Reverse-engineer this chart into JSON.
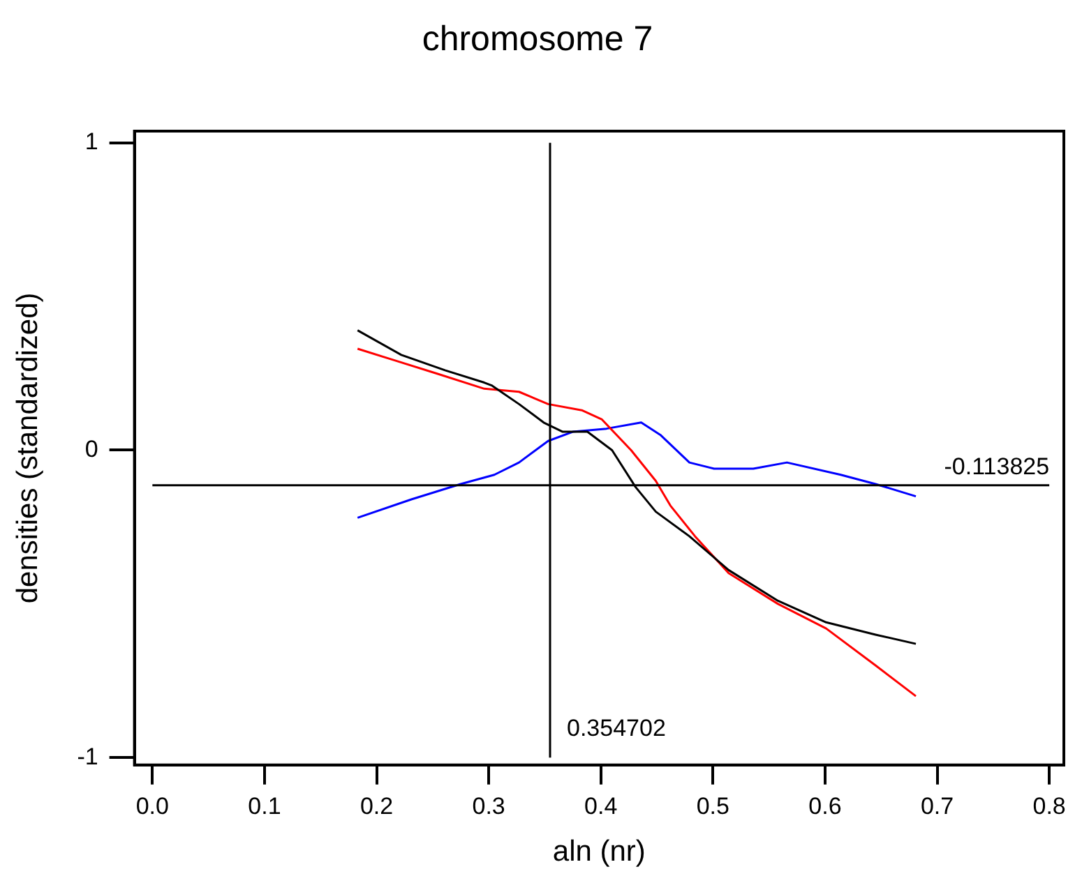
{
  "chart_data": {
    "type": "line",
    "title": "chromosome 7",
    "xlabel": "aln (nr)",
    "ylabel": "densities (standardized)",
    "xlim": [
      -0.016,
      0.813
    ],
    "ylim": [
      -1.024,
      1.038
    ],
    "xticks": [
      {
        "value": 0,
        "label": "0.0"
      },
      {
        "value": 0.1,
        "label": "0.1"
      },
      {
        "value": 0.2,
        "label": "0.2"
      },
      {
        "value": 0.3,
        "label": "0.3"
      },
      {
        "value": 0.4,
        "label": "0.4"
      },
      {
        "value": 0.5,
        "label": "0.5"
      },
      {
        "value": 0.6,
        "label": "0.6"
      },
      {
        "value": 0.7,
        "label": "0.7"
      },
      {
        "value": 0.8,
        "label": "0.8"
      }
    ],
    "yticks": [
      -1,
      0,
      1
    ],
    "grid": false,
    "legend": false,
    "marker": "none",
    "line_style": "solid",
    "series": [
      {
        "color": "#000000",
        "x": [
          0.183,
          0.222,
          0.261,
          0.296,
          0.303,
          0.327,
          0.349,
          0.366,
          0.388,
          0.41,
          0.431,
          0.449,
          0.479,
          0.514,
          0.558,
          0.601,
          0.645,
          0.681
        ],
        "values": [
          0.39,
          0.31,
          0.26,
          0.22,
          0.21,
          0.15,
          0.09,
          0.06,
          0.06,
          0.0,
          -0.12,
          -0.2,
          -0.28,
          -0.39,
          -0.49,
          -0.56,
          -0.6,
          -0.63
        ]
      },
      {
        "color": "#ff0000",
        "x": [
          0.183,
          0.218,
          0.253,
          0.296,
          0.327,
          0.353,
          0.383,
          0.401,
          0.427,
          0.449,
          0.462,
          0.484,
          0.514,
          0.558,
          0.601,
          0.645,
          0.681
        ],
        "values": [
          0.33,
          0.29,
          0.25,
          0.2,
          0.19,
          0.15,
          0.13,
          0.1,
          0.0,
          -0.1,
          -0.18,
          -0.28,
          -0.4,
          -0.5,
          -0.58,
          -0.7,
          -0.8
        ]
      },
      {
        "color": "#0000ff",
        "x": [
          0.183,
          0.231,
          0.275,
          0.305,
          0.327,
          0.353,
          0.375,
          0.405,
          0.436,
          0.453,
          0.479,
          0.501,
          0.536,
          0.566,
          0.614,
          0.645,
          0.681
        ],
        "values": [
          -0.22,
          -0.16,
          -0.11,
          -0.08,
          -0.04,
          0.03,
          0.06,
          0.07,
          0.09,
          0.05,
          -0.04,
          -0.06,
          -0.06,
          -0.04,
          -0.08,
          -0.11,
          -0.15
        ]
      }
    ],
    "ref_lines": [
      {
        "axis": "x",
        "value": 0.354702,
        "label": "0.354702",
        "color": "#000000"
      },
      {
        "axis": "y",
        "value": -0.113825,
        "label": "-0.113825",
        "color": "#000000"
      }
    ]
  }
}
